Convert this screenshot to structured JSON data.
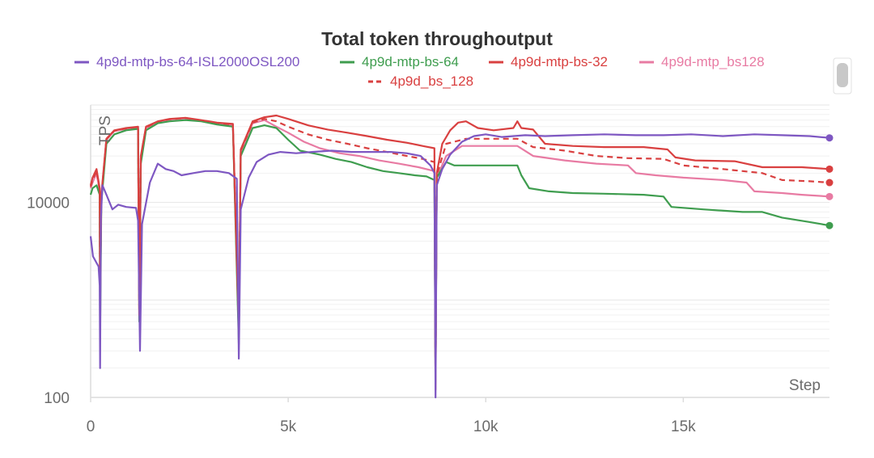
{
  "chart_data": {
    "type": "line",
    "title": "Total token throughoutput",
    "ylabel": "TPS",
    "xlabel": "Step",
    "yscale": "log",
    "ylim": [
      100,
      100000
    ],
    "xlim": [
      0,
      18700
    ],
    "x_ticks": [
      0,
      5000,
      10000,
      15000
    ],
    "x_tick_labels": [
      "0",
      "5k",
      "10k",
      "15k"
    ],
    "y_ticks": [
      100,
      10000
    ],
    "y_tick_labels": [
      "100",
      "10000"
    ],
    "grid": true,
    "legend_position": "top-center",
    "series": [
      {
        "name": "4p9d-mtp-bs-64-ISL2000OSL200",
        "color": "#7e57c2",
        "dash": "solid",
        "points": [
          [
            0,
            4500
          ],
          [
            60,
            2800
          ],
          [
            200,
            2200
          ],
          [
            230,
            1400
          ],
          [
            240,
            200
          ],
          [
            260,
            7000
          ],
          [
            300,
            15000
          ],
          [
            400,
            12000
          ],
          [
            550,
            8500
          ],
          [
            700,
            9500
          ],
          [
            900,
            9000
          ],
          [
            1150,
            8800
          ],
          [
            1200,
            6500
          ],
          [
            1250,
            300
          ],
          [
            1300,
            6000
          ],
          [
            1500,
            16000
          ],
          [
            1700,
            25000
          ],
          [
            1900,
            22000
          ],
          [
            2100,
            21000
          ],
          [
            2300,
            19000
          ],
          [
            2600,
            20000
          ],
          [
            2900,
            21000
          ],
          [
            3200,
            21000
          ],
          [
            3500,
            20000
          ],
          [
            3700,
            17500
          ],
          [
            3750,
            250
          ],
          [
            3800,
            8500
          ],
          [
            4000,
            18000
          ],
          [
            4200,
            26000
          ],
          [
            4500,
            31000
          ],
          [
            4800,
            33000
          ],
          [
            5200,
            32000
          ],
          [
            5600,
            33000
          ],
          [
            6100,
            34000
          ],
          [
            6600,
            33000
          ],
          [
            7100,
            33000
          ],
          [
            7600,
            33000
          ],
          [
            8000,
            32000
          ],
          [
            8350,
            30000
          ],
          [
            8600,
            24000
          ],
          [
            8700,
            20000
          ],
          [
            8730,
            100
          ],
          [
            8760,
            15000
          ],
          [
            8900,
            22000
          ],
          [
            9100,
            31000
          ],
          [
            9400,
            42000
          ],
          [
            9700,
            48000
          ],
          [
            10000,
            50000
          ],
          [
            10400,
            47000
          ],
          [
            11000,
            49000
          ],
          [
            11500,
            48000
          ],
          [
            12200,
            49000
          ],
          [
            13000,
            50000
          ],
          [
            13800,
            49000
          ],
          [
            14500,
            49000
          ],
          [
            15200,
            50000
          ],
          [
            16000,
            48000
          ],
          [
            16800,
            50000
          ],
          [
            17500,
            49000
          ],
          [
            18200,
            48000
          ],
          [
            18700,
            46000
          ]
        ]
      },
      {
        "name": "4p9d-mtp-bs-64",
        "color": "#3f9d4f",
        "dash": "solid",
        "points": [
          [
            0,
            12000
          ],
          [
            50,
            14000
          ],
          [
            150,
            15000
          ],
          [
            230,
            12000
          ],
          [
            240,
            400
          ],
          [
            270,
            10000
          ],
          [
            400,
            40000
          ],
          [
            600,
            50000
          ],
          [
            900,
            55000
          ],
          [
            1200,
            57000
          ],
          [
            1230,
            600
          ],
          [
            1270,
            25000
          ],
          [
            1400,
            55000
          ],
          [
            1700,
            65000
          ],
          [
            2000,
            68000
          ],
          [
            2400,
            70000
          ],
          [
            2800,
            68000
          ],
          [
            3200,
            63000
          ],
          [
            3600,
            60000
          ],
          [
            3750,
            350
          ],
          [
            3800,
            30000
          ],
          [
            4100,
            58000
          ],
          [
            4400,
            62000
          ],
          [
            4700,
            58000
          ],
          [
            5000,
            44000
          ],
          [
            5300,
            34000
          ],
          [
            5800,
            31000
          ],
          [
            6200,
            28000
          ],
          [
            6600,
            26000
          ],
          [
            7000,
            23000
          ],
          [
            7400,
            21000
          ],
          [
            7800,
            20000
          ],
          [
            8200,
            19000
          ],
          [
            8500,
            18500
          ],
          [
            8700,
            17000
          ],
          [
            8730,
            150
          ],
          [
            8760,
            18000
          ],
          [
            9000,
            26000
          ],
          [
            9200,
            24000
          ],
          [
            10000,
            24000
          ],
          [
            10800,
            24000
          ],
          [
            10900,
            19000
          ],
          [
            11100,
            14000
          ],
          [
            11600,
            13000
          ],
          [
            12200,
            12500
          ],
          [
            13000,
            12300
          ],
          [
            14000,
            12000
          ],
          [
            14500,
            11500
          ],
          [
            14700,
            9000
          ],
          [
            15500,
            8500
          ],
          [
            16500,
            8000
          ],
          [
            17000,
            8000
          ],
          [
            17500,
            7000
          ],
          [
            18200,
            6300
          ],
          [
            18700,
            5800
          ]
        ]
      },
      {
        "name": "4p9d-mtp-bs-32",
        "color": "#d94040",
        "dash": "solid",
        "points": [
          [
            0,
            15000
          ],
          [
            50,
            18000
          ],
          [
            150,
            22000
          ],
          [
            230,
            14000
          ],
          [
            240,
            900
          ],
          [
            270,
            12000
          ],
          [
            400,
            45000
          ],
          [
            600,
            55000
          ],
          [
            900,
            58000
          ],
          [
            1200,
            60000
          ],
          [
            1230,
            700
          ],
          [
            1270,
            30000
          ],
          [
            1400,
            60000
          ],
          [
            1700,
            68000
          ],
          [
            2000,
            72000
          ],
          [
            2400,
            74000
          ],
          [
            2800,
            70000
          ],
          [
            3200,
            66000
          ],
          [
            3600,
            64000
          ],
          [
            3750,
            500
          ],
          [
            3800,
            35000
          ],
          [
            4100,
            68000
          ],
          [
            4400,
            75000
          ],
          [
            4700,
            78000
          ],
          [
            5000,
            72000
          ],
          [
            5500,
            62000
          ],
          [
            6000,
            56000
          ],
          [
            6500,
            52000
          ],
          [
            7000,
            48000
          ],
          [
            7500,
            44000
          ],
          [
            8000,
            41000
          ],
          [
            8400,
            38000
          ],
          [
            8700,
            36000
          ],
          [
            8730,
            120
          ],
          [
            8760,
            20000
          ],
          [
            8900,
            40000
          ],
          [
            9100,
            55000
          ],
          [
            9300,
            66000
          ],
          [
            9500,
            68000
          ],
          [
            9800,
            58000
          ],
          [
            10200,
            55000
          ],
          [
            10700,
            58000
          ],
          [
            10800,
            68000
          ],
          [
            10900,
            58000
          ],
          [
            11200,
            56000
          ],
          [
            11500,
            40000
          ],
          [
            12200,
            38000
          ],
          [
            13000,
            37000
          ],
          [
            14000,
            37000
          ],
          [
            14600,
            35000
          ],
          [
            14800,
            29000
          ],
          [
            15300,
            27000
          ],
          [
            16300,
            26500
          ],
          [
            17000,
            23000
          ],
          [
            18000,
            23000
          ],
          [
            18700,
            22000
          ]
        ]
      },
      {
        "name": "4p9d-mtp_bs128",
        "color": "#e87ba3",
        "dash": "solid",
        "points": [
          [
            0,
            14000
          ],
          [
            50,
            16000
          ],
          [
            150,
            20000
          ],
          [
            230,
            13000
          ],
          [
            240,
            800
          ],
          [
            270,
            11000
          ],
          [
            400,
            44000
          ],
          [
            600,
            54000
          ],
          [
            900,
            57000
          ],
          [
            1200,
            59000
          ],
          [
            1230,
            650
          ],
          [
            1270,
            28000
          ],
          [
            1400,
            58000
          ],
          [
            1700,
            67000
          ],
          [
            2000,
            71000
          ],
          [
            2400,
            73000
          ],
          [
            2800,
            69000
          ],
          [
            3200,
            65000
          ],
          [
            3600,
            62000
          ],
          [
            3750,
            450
          ],
          [
            3800,
            33000
          ],
          [
            4100,
            65000
          ],
          [
            4400,
            70000
          ],
          [
            4700,
            60000
          ],
          [
            5000,
            52000
          ],
          [
            5400,
            42000
          ],
          [
            5800,
            36000
          ],
          [
            6300,
            32000
          ],
          [
            6800,
            30000
          ],
          [
            7300,
            27000
          ],
          [
            7800,
            25000
          ],
          [
            8300,
            23000
          ],
          [
            8700,
            21000
          ],
          [
            8730,
            160
          ],
          [
            8760,
            18000
          ],
          [
            9000,
            30000
          ],
          [
            9400,
            38000
          ],
          [
            10000,
            38000
          ],
          [
            10800,
            38000
          ],
          [
            11200,
            30000
          ],
          [
            12000,
            27000
          ],
          [
            12800,
            25000
          ],
          [
            13600,
            24000
          ],
          [
            13800,
            20000
          ],
          [
            14300,
            19000
          ],
          [
            15000,
            18000
          ],
          [
            16000,
            17000
          ],
          [
            16600,
            16000
          ],
          [
            16800,
            13000
          ],
          [
            17500,
            12500
          ],
          [
            18000,
            12000
          ],
          [
            18700,
            11500
          ]
        ]
      },
      {
        "name": "4p9d_bs_128",
        "color": "#d94040",
        "dash": "dashed",
        "points": [
          [
            0,
            14500
          ],
          [
            50,
            17000
          ],
          [
            150,
            21000
          ],
          [
            230,
            13500
          ],
          [
            240,
            850
          ],
          [
            270,
            11500
          ],
          [
            400,
            44500
          ],
          [
            600,
            54500
          ],
          [
            900,
            57500
          ],
          [
            1200,
            59500
          ],
          [
            1230,
            680
          ],
          [
            1270,
            29000
          ],
          [
            1400,
            59000
          ],
          [
            1700,
            67500
          ],
          [
            2000,
            71500
          ],
          [
            2400,
            73500
          ],
          [
            2800,
            69500
          ],
          [
            3200,
            65500
          ],
          [
            3600,
            63000
          ],
          [
            3750,
            480
          ],
          [
            3800,
            34000
          ],
          [
            4100,
            66000
          ],
          [
            4400,
            72000
          ],
          [
            4700,
            68000
          ],
          [
            5000,
            60000
          ],
          [
            5500,
            50000
          ],
          [
            6000,
            44000
          ],
          [
            6500,
            40000
          ],
          [
            7000,
            36000
          ],
          [
            7500,
            33000
          ],
          [
            8000,
            30000
          ],
          [
            8400,
            28000
          ],
          [
            8700,
            26000
          ],
          [
            8730,
            140
          ],
          [
            8760,
            19000
          ],
          [
            9000,
            40000
          ],
          [
            9500,
            45000
          ],
          [
            10000,
            45000
          ],
          [
            10800,
            45000
          ],
          [
            11200,
            37000
          ],
          [
            12000,
            34000
          ],
          [
            12800,
            30000
          ],
          [
            13600,
            28500
          ],
          [
            14500,
            28000
          ],
          [
            15000,
            24000
          ],
          [
            16000,
            22000
          ],
          [
            17000,
            20000
          ],
          [
            17500,
            17000
          ],
          [
            18200,
            16500
          ],
          [
            18700,
            16000
          ]
        ]
      }
    ]
  },
  "scrollbar": {
    "visible": true
  }
}
